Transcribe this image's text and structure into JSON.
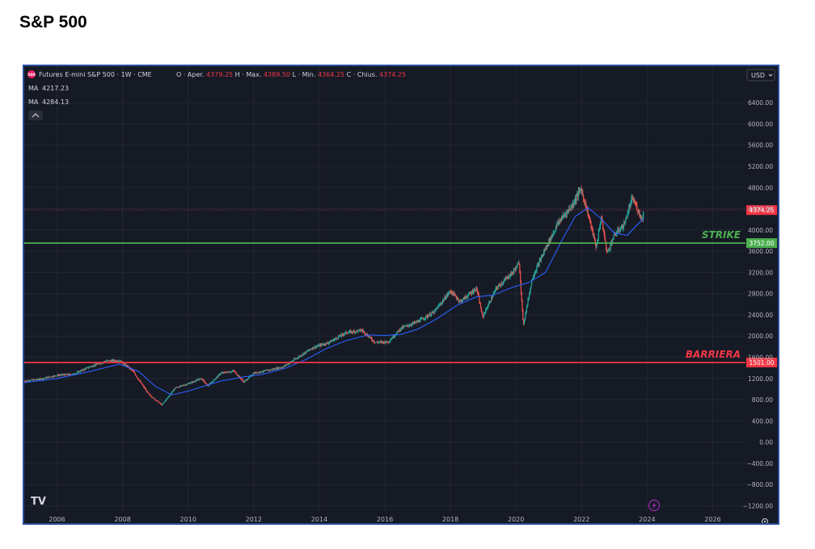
{
  "page": {
    "title": "S&P 500"
  },
  "header": {
    "symbol_badge": "500",
    "symbol": "Futures E-mini S&P 500 · 1W · CME",
    "ohlc": [
      {
        "key": "O",
        "label": "Aper.",
        "value": "4379.25"
      },
      {
        "key": "H",
        "label": "Max.",
        "value": "4389.50"
      },
      {
        "key": "L",
        "label": "Min.",
        "value": "4364.25"
      },
      {
        "key": "C",
        "label": "Chius.",
        "value": "4374.25"
      }
    ],
    "ma_rows": [
      {
        "label": "MA",
        "value": "4217.23",
        "color": "#2962ff"
      },
      {
        "label": "MA",
        "value": "4284.13",
        "color": "#f23645"
      }
    ],
    "currency": "USD",
    "logo": "TV"
  },
  "colors": {
    "up": "#26a69a",
    "down": "#ef5350",
    "ma": "#2962ff",
    "strike": "#4caf50",
    "barrier": "#f23645",
    "bg": "#161a25"
  },
  "chart_data": {
    "type": "candlestick",
    "title": "S&P 500",
    "ylim": [
      -1300,
      6600
    ],
    "y_ticks": [
      6400,
      6000,
      5600,
      5200,
      4800,
      4400,
      4000,
      3600,
      3200,
      2800,
      2400,
      2000,
      1600,
      1200,
      800,
      400,
      0,
      -400,
      -800,
      -1200
    ],
    "y_tick_labels": [
      "6400.00",
      "6000.00",
      "5600.00",
      "5200.00",
      "4800.00",
      "4400.00",
      "4000.00",
      "3600.00",
      "3200.00",
      "2800.00",
      "2400.00",
      "2000.00",
      "1600.00",
      "1200.00",
      "800.00",
      "400.00",
      "0.00",
      "−400.00",
      "−800.00",
      "−1200.00"
    ],
    "xlim": [
      2005.0,
      2027.0
    ],
    "x_ticks": [
      2006,
      2008,
      2010,
      2012,
      2014,
      2016,
      2018,
      2020,
      2022,
      2024,
      2026
    ],
    "x_tick_labels": [
      "2006",
      "2008",
      "2010",
      "2012",
      "2014",
      "2016",
      "2018",
      "2020",
      "2022",
      "2024",
      "2026"
    ],
    "price_path": [
      [
        2005.0,
        1150
      ],
      [
        2005.5,
        1190
      ],
      [
        2006.0,
        1260
      ],
      [
        2006.5,
        1280
      ],
      [
        2007.0,
        1420
      ],
      [
        2007.5,
        1530
      ],
      [
        2007.9,
        1540
      ],
      [
        2008.3,
        1350
      ],
      [
        2008.8,
        900
      ],
      [
        2009.2,
        700
      ],
      [
        2009.6,
        1020
      ],
      [
        2010.0,
        1100
      ],
      [
        2010.4,
        1200
      ],
      [
        2010.6,
        1060
      ],
      [
        2011.0,
        1300
      ],
      [
        2011.4,
        1340
      ],
      [
        2011.7,
        1130
      ],
      [
        2012.0,
        1300
      ],
      [
        2012.5,
        1360
      ],
      [
        2012.9,
        1420
      ],
      [
        2013.3,
        1580
      ],
      [
        2013.8,
        1780
      ],
      [
        2014.3,
        1880
      ],
      [
        2014.8,
        2060
      ],
      [
        2015.3,
        2110
      ],
      [
        2015.7,
        1880
      ],
      [
        2016.1,
        1890
      ],
      [
        2016.5,
        2150
      ],
      [
        2017.0,
        2270
      ],
      [
        2017.5,
        2450
      ],
      [
        2018.0,
        2850
      ],
      [
        2018.3,
        2650
      ],
      [
        2018.8,
        2900
      ],
      [
        2018.98,
        2360
      ],
      [
        2019.4,
        2900
      ],
      [
        2019.9,
        3200
      ],
      [
        2020.1,
        3380
      ],
      [
        2020.22,
        2200
      ],
      [
        2020.5,
        3100
      ],
      [
        2020.9,
        3650
      ],
      [
        2021.3,
        4150
      ],
      [
        2021.7,
        4450
      ],
      [
        2021.98,
        4780
      ],
      [
        2022.2,
        4300
      ],
      [
        2022.45,
        3670
      ],
      [
        2022.6,
        4250
      ],
      [
        2022.78,
        3560
      ],
      [
        2023.0,
        3900
      ],
      [
        2023.3,
        4100
      ],
      [
        2023.55,
        4600
      ],
      [
        2023.7,
        4400
      ],
      [
        2023.85,
        4200
      ],
      [
        2023.9,
        4374
      ]
    ],
    "series": [
      {
        "type": "line",
        "values": [
          [
            2005.0,
            1120
          ],
          [
            2006.0,
            1200
          ],
          [
            2007.0,
            1330
          ],
          [
            2007.9,
            1470
          ],
          [
            2008.5,
            1330
          ],
          [
            2009.0,
            1050
          ],
          [
            2009.5,
            890
          ],
          [
            2010.0,
            960
          ],
          [
            2010.5,
            1060
          ],
          [
            2011.0,
            1150
          ],
          [
            2011.7,
            1230
          ],
          [
            2012.3,
            1280
          ],
          [
            2013.0,
            1400
          ],
          [
            2013.6,
            1560
          ],
          [
            2014.2,
            1760
          ],
          [
            2014.8,
            1910
          ],
          [
            2015.5,
            2020
          ],
          [
            2016.0,
            2010
          ],
          [
            2016.5,
            2030
          ],
          [
            2017.0,
            2130
          ],
          [
            2017.6,
            2330
          ],
          [
            2018.2,
            2580
          ],
          [
            2018.8,
            2740
          ],
          [
            2019.3,
            2770
          ],
          [
            2019.9,
            2920
          ],
          [
            2020.4,
            3010
          ],
          [
            2020.9,
            3200
          ],
          [
            2021.4,
            3800
          ],
          [
            2021.8,
            4250
          ],
          [
            2022.2,
            4420
          ],
          [
            2022.6,
            4210
          ],
          [
            2023.0,
            3940
          ],
          [
            2023.4,
            3900
          ],
          [
            2023.7,
            4100
          ],
          [
            2023.9,
            4217
          ]
        ]
      }
    ],
    "hlines": [
      {
        "name": "STRIKE",
        "value": 3752,
        "label": "3752.00",
        "color": "#4caf50"
      },
      {
        "name": "BARRIERA",
        "value": 1501,
        "label": "1501.00",
        "color": "#f23645"
      }
    ],
    "last_price": {
      "value": 4374.25,
      "label": "4374.25",
      "color": "#f23645"
    },
    "grid": true
  }
}
